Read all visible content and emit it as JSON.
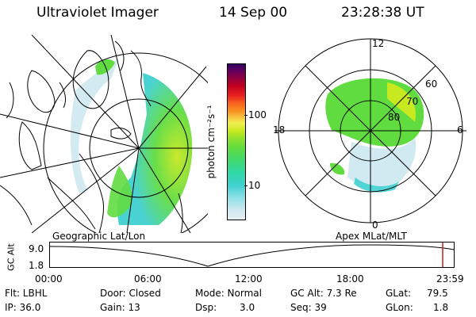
{
  "header": {
    "title": "Ultraviolet Imager",
    "date": "14 Sep 00",
    "time": "23:28:38 UT"
  },
  "colorbar": {
    "unit_label": "photon cm⁻²s⁻¹",
    "tick_100": "100",
    "tick_10": "10",
    "colors": [
      "#e8eef4",
      "#cfe8f0",
      "#8fe0e8",
      "#40d0d0",
      "#30d8a8",
      "#40d870",
      "#60dc40",
      "#90e030",
      "#c8e820",
      "#f0f050",
      "#f8c040",
      "#f89020",
      "#f86020",
      "#e82020",
      "#c00020",
      "#900040",
      "#600060",
      "#300060"
    ]
  },
  "polar_plot": {
    "labels": {
      "mlt_12": "12",
      "mlt_18": "18",
      "mlt_6": "6",
      "mlt_0": "0",
      "lat_60": "60",
      "lat_70": "70",
      "lat_80": "80"
    }
  },
  "timeline": {
    "left_caption": "Geographic Lat/Lon",
    "right_caption": "Apex MLat/MLT",
    "y_label": "GC Alt",
    "y_ticks": [
      "9.0",
      "1.8"
    ],
    "x_ticks": [
      "00:00",
      "06:00",
      "12:00",
      "18:00",
      "23:59"
    ],
    "current_time_marker_color": "#d02020"
  },
  "info": {
    "flt": "Flt: LBHL",
    "ip": "IP: 36.0",
    "door": "Door: Closed",
    "gain": "Gain: 13",
    "mode": "Mode: Normal",
    "dsp_label": "Dsp:",
    "dsp_value": "3.0",
    "gc_alt": "GC Alt: 7.3 Re",
    "seq": "Seq: 39",
    "glat_label": "GLat:",
    "glat_value": "79.5",
    "glon_label": "GLon:",
    "glon_value": "1.8"
  }
}
